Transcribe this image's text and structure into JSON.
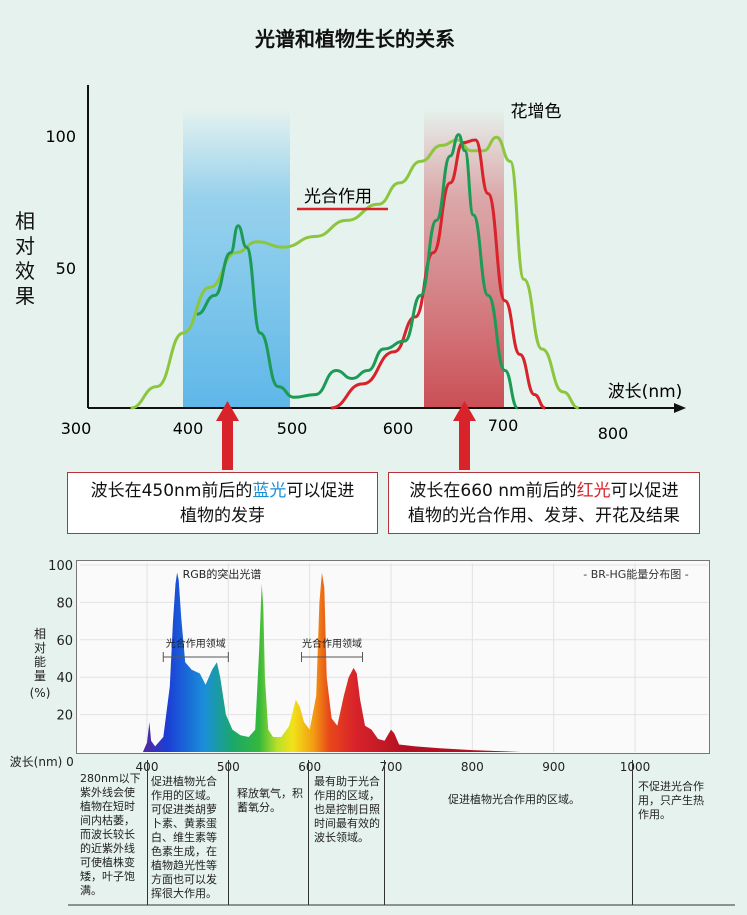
{
  "chart_data": [
    {
      "type": "line",
      "title": "光谱和植物生长的关系",
      "ylabel": "相对效果",
      "xlabel": "波长(nm)",
      "x_ticks": [
        "300",
        "400",
        "500",
        "600",
        "700",
        "800"
      ],
      "y_ticks": [
        "100",
        "50"
      ],
      "xlim": [
        300,
        800
      ],
      "ylim": [
        0,
        110
      ],
      "highlight_bands": [
        {
          "x": [
            400,
            500
          ],
          "color": "#7cc6ec"
        },
        {
          "x": [
            630,
            705
          ],
          "color": "#d26a70"
        }
      ],
      "series": [
        {
          "name": "花增色",
          "color": "#8cc63f",
          "points": [
            [
              345,
              0
            ],
            [
              370,
              8
            ],
            [
              395,
              28
            ],
            [
              420,
              45
            ],
            [
              445,
              58
            ],
            [
              465,
              62
            ],
            [
              490,
              60
            ],
            [
              520,
              64
            ],
            [
              550,
              70
            ],
            [
              580,
              76
            ],
            [
              600,
              84
            ],
            [
              620,
              92
            ],
            [
              640,
              98
            ],
            [
              655,
              100
            ],
            [
              668,
              96
            ],
            [
              680,
              96
            ],
            [
              692,
              101
            ],
            [
              705,
              92
            ],
            [
              718,
              48
            ],
            [
              735,
              22
            ],
            [
              755,
              6
            ],
            [
              770,
              0
            ]
          ]
        },
        {
          "name": "光合作用",
          "color": "#d8232a",
          "points": [
            [
              535,
              0
            ],
            [
              565,
              9
            ],
            [
              595,
              21
            ],
            [
              615,
              34
            ],
            [
              632,
              58
            ],
            [
              648,
              84
            ],
            [
              660,
              99
            ],
            [
              672,
              100
            ],
            [
              684,
              80
            ],
            [
              700,
              40
            ],
            [
              714,
              20
            ],
            [
              728,
              5
            ],
            [
              738,
              0
            ]
          ]
        },
        {
          "name": "",
          "color": "#1d9a56",
          "points": [
            [
              408,
              35
            ],
            [
              425,
              42
            ],
            [
              440,
              58
            ],
            [
              447,
              68
            ],
            [
              455,
              60
            ],
            [
              468,
              28
            ],
            [
              485,
              8
            ],
            [
              500,
              4
            ],
            [
              520,
              5
            ],
            [
              540,
              14
            ],
            [
              555,
              11
            ],
            [
              570,
              14
            ],
            [
              585,
              22
            ],
            [
              605,
              25
            ],
            [
              620,
              42
            ],
            [
              635,
              70
            ],
            [
              648,
              94
            ],
            [
              656,
              102
            ],
            [
              662,
              96
            ],
            [
              670,
              72
            ],
            [
              684,
              42
            ],
            [
              700,
              14
            ],
            [
              712,
              0
            ]
          ]
        }
      ],
      "annotations": [
        {
          "text": "波长在450nm前后的",
          "highlight": "蓝光",
          "text2": "可以促进",
          "line2": "植物的发芽",
          "x": 450
        },
        {
          "text": "波长在660 nm前后的",
          "highlight": "红光",
          "text2": "可以促进",
          "line2": "植物的光合作用、发芽、开花及结果",
          "x": 660
        }
      ]
    },
    {
      "type": "area",
      "title": "- BR-HG能量分布图 -",
      "ylabel": "相对能量(%)",
      "xlabel": "波长(nm)",
      "x_ticks": [
        "400",
        "500",
        "600",
        "700",
        "800",
        "900",
        "1000"
      ],
      "y_ticks": [
        "100",
        "80",
        "60",
        "40",
        "20"
      ],
      "x_origin_label": "0",
      "xlim": [
        310,
        1080
      ],
      "ylim": [
        0,
        105
      ],
      "peak_label": "RGB的突出光谱",
      "regions": [
        {
          "label": "光合作用领域",
          "x": [
            420,
            500
          ]
        },
        {
          "label": "光合作用领域",
          "x": [
            590,
            665
          ]
        }
      ],
      "points": [
        [
          395,
          0
        ],
        [
          400,
          5
        ],
        [
          403,
          16
        ],
        [
          405,
          6
        ],
        [
          410,
          3
        ],
        [
          420,
          8
        ],
        [
          428,
          35
        ],
        [
          432,
          70
        ],
        [
          435,
          90
        ],
        [
          437,
          96
        ],
        [
          439,
          92
        ],
        [
          442,
          72
        ],
        [
          447,
          48
        ],
        [
          455,
          44
        ],
        [
          465,
          42
        ],
        [
          472,
          36
        ],
        [
          480,
          44
        ],
        [
          486,
          48
        ],
        [
          490,
          40
        ],
        [
          497,
          20
        ],
        [
          505,
          12
        ],
        [
          515,
          9
        ],
        [
          525,
          8
        ],
        [
          533,
          12
        ],
        [
          538,
          55
        ],
        [
          541,
          90
        ],
        [
          543,
          78
        ],
        [
          545,
          40
        ],
        [
          549,
          12
        ],
        [
          555,
          8
        ],
        [
          565,
          8
        ],
        [
          575,
          14
        ],
        [
          583,
          28
        ],
        [
          588,
          24
        ],
        [
          593,
          16
        ],
        [
          600,
          12
        ],
        [
          608,
          30
        ],
        [
          612,
          80
        ],
        [
          615,
          96
        ],
        [
          618,
          88
        ],
        [
          621,
          40
        ],
        [
          627,
          18
        ],
        [
          634,
          14
        ],
        [
          642,
          30
        ],
        [
          648,
          40
        ],
        [
          654,
          45
        ],
        [
          658,
          42
        ],
        [
          662,
          28
        ],
        [
          668,
          14
        ],
        [
          676,
          12
        ],
        [
          684,
          7
        ],
        [
          692,
          6
        ],
        [
          700,
          12
        ],
        [
          704,
          10
        ],
        [
          710,
          4
        ],
        [
          730,
          3
        ],
        [
          760,
          2
        ],
        [
          800,
          1
        ],
        [
          860,
          0
        ]
      ]
    }
  ],
  "bottom_table": [
    {
      "title_text": "280nm以下紫外线会使植物在短时间内枯萎，而波长较长的近紫外线可使植株变矮，叶子饱满。"
    },
    {
      "title_text": "促进植物光合作用的区域。可促进类胡萝卜素、黄素蛋白、维生素等色素生成，在植物趋光性等方面也可以发挥很大作用。"
    },
    {
      "title_text": "释放氧气，积蓄氧分。"
    },
    {
      "title_text": "最有助于光合作用的区域，也是控制日照时间最有效的波长领域。"
    },
    {
      "title_text": "促进植物光合作用的区域。"
    },
    {
      "title_text": "不促进光合作用，只产生热作用。"
    }
  ],
  "colors": {
    "blue_band": "#7cc6ec",
    "red_band": "#d26a70",
    "arrow": "#d8232a",
    "box_border": "#b5333a"
  }
}
